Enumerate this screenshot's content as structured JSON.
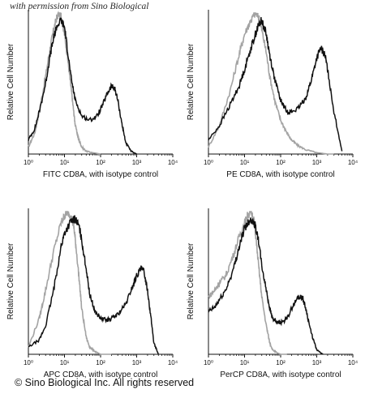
{
  "watermark": "with permission from Sino Biological",
  "copyright": "© Sino Biological Inc. All rights reserved",
  "colors": {
    "isotype": "#a3a3a3",
    "antibody": "#111111",
    "axis": "#111111"
  },
  "chart_data": [
    {
      "type": "line",
      "xscale": "log",
      "xlim": [
        1,
        10000
      ],
      "xticks": [
        "10⁰",
        "10¹",
        "10²",
        "10³",
        "10⁴"
      ],
      "xlabel": "FITC CD8A, with isotype control",
      "ylabel": "Relative Cell Number",
      "series": [
        {
          "role": "isotype",
          "x": [
            1,
            1.5,
            2,
            3,
            4,
            5,
            6,
            7,
            8,
            9,
            10,
            12,
            14,
            16,
            18,
            20,
            25,
            30,
            40,
            60,
            100
          ],
          "y": [
            0.05,
            0.15,
            0.3,
            0.55,
            0.75,
            0.88,
            0.96,
            1.0,
            0.98,
            0.92,
            0.85,
            0.7,
            0.55,
            0.42,
            0.3,
            0.2,
            0.1,
            0.05,
            0.02,
            0.01,
            0.0
          ]
        },
        {
          "role": "antibody",
          "x": [
            1,
            1.5,
            2,
            3,
            4,
            5,
            6,
            8,
            10,
            12,
            15,
            20,
            30,
            50,
            80,
            120,
            160,
            200,
            250,
            300,
            400,
            500,
            700,
            1000
          ],
          "y": [
            0.1,
            0.18,
            0.3,
            0.5,
            0.7,
            0.82,
            0.9,
            0.95,
            0.9,
            0.75,
            0.55,
            0.38,
            0.27,
            0.24,
            0.27,
            0.36,
            0.44,
            0.48,
            0.46,
            0.38,
            0.2,
            0.08,
            0.02,
            0.0
          ]
        }
      ]
    },
    {
      "type": "line",
      "xscale": "log",
      "xlim": [
        1,
        10000
      ],
      "xticks": [
        "10⁰",
        "10¹",
        "10²",
        "10³",
        "10⁴"
      ],
      "xlabel": "PE CD8A, with isotype control",
      "ylabel": "Relative Cell Number",
      "series": [
        {
          "role": "isotype",
          "x": [
            1,
            2,
            4,
            7,
            10,
            15,
            20,
            25,
            30,
            40,
            50,
            70,
            100,
            150,
            200,
            300,
            500,
            1000,
            2000,
            3000
          ],
          "y": [
            0.05,
            0.2,
            0.45,
            0.7,
            0.85,
            0.95,
            1.0,
            0.97,
            0.88,
            0.72,
            0.55,
            0.37,
            0.24,
            0.15,
            0.1,
            0.06,
            0.03,
            0.01,
            0.0,
            0.0
          ]
        },
        {
          "role": "antibody",
          "x": [
            1,
            2,
            4,
            7,
            10,
            15,
            20,
            25,
            30,
            40,
            50,
            70,
            100,
            150,
            200,
            300,
            500,
            700,
            1000,
            1300,
            1700,
            2000,
            3000,
            5000
          ],
          "y": [
            0.1,
            0.2,
            0.35,
            0.48,
            0.6,
            0.75,
            0.85,
            0.92,
            0.95,
            0.85,
            0.7,
            0.52,
            0.38,
            0.3,
            0.3,
            0.32,
            0.4,
            0.52,
            0.68,
            0.75,
            0.7,
            0.6,
            0.3,
            0.02
          ]
        }
      ]
    },
    {
      "type": "line",
      "xscale": "log",
      "xlim": [
        1,
        10000
      ],
      "xticks": [
        "10⁰",
        "10¹",
        "10²",
        "10³",
        "10⁴"
      ],
      "xlabel": "APC CD8A, with isotype control",
      "ylabel": "Relative Cell Number",
      "series": [
        {
          "role": "isotype",
          "x": [
            1,
            2,
            3,
            5,
            8,
            10,
            12,
            15,
            18,
            20,
            25,
            30,
            40,
            50,
            70,
            100,
            200
          ],
          "y": [
            0.05,
            0.25,
            0.45,
            0.72,
            0.92,
            0.97,
            1.0,
            0.97,
            0.9,
            0.8,
            0.55,
            0.32,
            0.12,
            0.05,
            0.02,
            0.0,
            0.0
          ]
        },
        {
          "role": "antibody",
          "x": [
            1,
            2,
            3,
            5,
            8,
            10,
            15,
            20,
            25,
            30,
            40,
            50,
            70,
            100,
            150,
            200,
            300,
            500,
            700,
            1000,
            1300,
            1600,
            2000,
            2500,
            3000,
            4000
          ],
          "y": [
            0.05,
            0.1,
            0.2,
            0.45,
            0.75,
            0.85,
            0.93,
            0.95,
            0.9,
            0.8,
            0.6,
            0.42,
            0.3,
            0.25,
            0.24,
            0.25,
            0.28,
            0.35,
            0.45,
            0.55,
            0.6,
            0.58,
            0.45,
            0.25,
            0.08,
            0.0
          ]
        }
      ]
    },
    {
      "type": "line",
      "xscale": "log",
      "xlim": [
        1,
        10000
      ],
      "xticks": [
        "10⁰",
        "10¹",
        "10²",
        "10³",
        "10⁴"
      ],
      "xlabel": "PerCP CD8A, with isotype control",
      "ylabel": "Relative Cell Number",
      "series": [
        {
          "role": "isotype",
          "x": [
            1,
            1.5,
            2,
            3,
            5,
            7,
            10,
            12,
            15,
            18,
            20,
            25,
            30,
            40,
            50,
            60,
            80,
            100,
            150
          ],
          "y": [
            0.4,
            0.45,
            0.5,
            0.55,
            0.7,
            0.82,
            0.92,
            0.97,
            1.0,
            0.95,
            0.85,
            0.6,
            0.4,
            0.2,
            0.08,
            0.03,
            0.01,
            0.0,
            0.0
          ]
        },
        {
          "role": "antibody",
          "x": [
            1,
            1.5,
            2,
            3,
            5,
            7,
            10,
            12,
            15,
            20,
            25,
            30,
            40,
            50,
            60,
            80,
            100,
            150,
            200,
            300,
            400,
            500,
            700,
            1000,
            1500
          ],
          "y": [
            0.3,
            0.33,
            0.38,
            0.45,
            0.6,
            0.75,
            0.88,
            0.92,
            0.95,
            0.9,
            0.78,
            0.62,
            0.45,
            0.32,
            0.25,
            0.22,
            0.22,
            0.25,
            0.32,
            0.4,
            0.4,
            0.32,
            0.15,
            0.03,
            0.0
          ]
        }
      ]
    }
  ]
}
